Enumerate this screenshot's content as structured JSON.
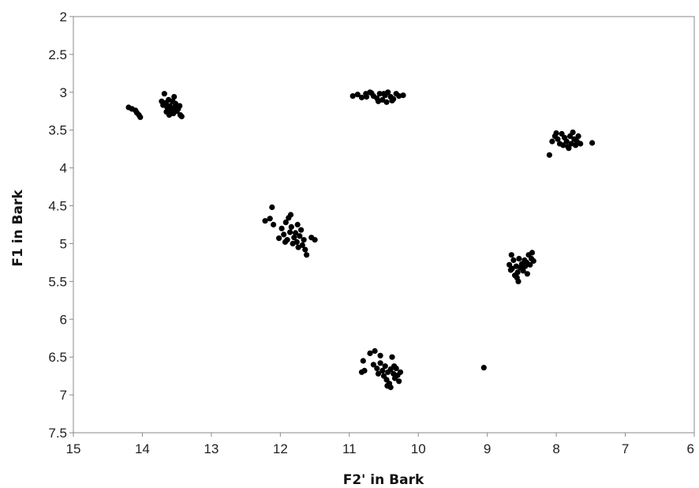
{
  "chart_data": {
    "type": "scatter",
    "title": "",
    "xlabel": "F2' in Bark",
    "ylabel": "F1 in Bark",
    "xlim": [
      15,
      6
    ],
    "ylim": [
      7.5,
      2
    ],
    "x_reversed": true,
    "y_reversed": true,
    "xticks": [
      "15",
      "14",
      "13",
      "12",
      "11",
      "10",
      "9",
      "8",
      "7",
      "6"
    ],
    "yticks": [
      "2",
      "2.5",
      "3",
      "3.5",
      "4",
      "4.5",
      "5",
      "5.5",
      "6",
      "6.5",
      "7",
      "7.5"
    ],
    "grid": false,
    "legend": "none",
    "point_color": "#000000",
    "series": [
      {
        "points": [
          [
            14.2,
            3.2
          ],
          [
            14.15,
            3.22
          ],
          [
            14.1,
            3.24
          ],
          [
            14.08,
            3.27
          ],
          [
            14.05,
            3.3
          ],
          [
            14.03,
            3.33
          ],
          [
            13.72,
            3.12
          ],
          [
            13.7,
            3.17
          ],
          [
            13.68,
            3.02
          ],
          [
            13.66,
            3.14
          ],
          [
            13.64,
            3.2
          ],
          [
            13.62,
            3.1
          ],
          [
            13.6,
            3.18
          ],
          [
            13.58,
            3.24
          ],
          [
            13.56,
            3.12
          ],
          [
            13.55,
            3.28
          ],
          [
            13.54,
            3.06
          ],
          [
            13.53,
            3.2
          ],
          [
            13.52,
            3.15
          ],
          [
            13.5,
            3.25
          ],
          [
            13.48,
            3.22
          ],
          [
            13.46,
            3.18
          ],
          [
            13.45,
            3.3
          ],
          [
            13.43,
            3.32
          ],
          [
            13.65,
            3.26
          ],
          [
            13.61,
            3.3
          ],
          [
            10.95,
            3.05
          ],
          [
            10.88,
            3.03
          ],
          [
            10.82,
            3.07
          ],
          [
            10.76,
            3.02
          ],
          [
            10.7,
            3.0
          ],
          [
            10.65,
            3.05
          ],
          [
            10.6,
            3.08
          ],
          [
            10.56,
            3.02
          ],
          [
            10.52,
            3.1
          ],
          [
            10.48,
            3.04
          ],
          [
            10.44,
            3.0
          ],
          [
            10.4,
            3.06
          ],
          [
            10.36,
            3.09
          ],
          [
            10.32,
            3.02
          ],
          [
            10.28,
            3.05
          ],
          [
            10.22,
            3.04
          ],
          [
            10.75,
            3.06
          ],
          [
            10.58,
            3.12
          ],
          [
            10.46,
            3.13
          ],
          [
            10.38,
            3.11
          ],
          [
            10.68,
            3.01
          ],
          [
            10.5,
            3.02
          ],
          [
            8.1,
            3.83
          ],
          [
            8.06,
            3.65
          ],
          [
            8.02,
            3.58
          ],
          [
            7.98,
            3.62
          ],
          [
            7.95,
            3.68
          ],
          [
            7.92,
            3.55
          ],
          [
            7.9,
            3.7
          ],
          [
            7.88,
            3.6
          ],
          [
            7.85,
            3.65
          ],
          [
            7.83,
            3.72
          ],
          [
            7.8,
            3.58
          ],
          [
            7.78,
            3.68
          ],
          [
            7.76,
            3.53
          ],
          [
            7.74,
            3.62
          ],
          [
            7.72,
            3.7
          ],
          [
            7.7,
            3.65
          ],
          [
            7.68,
            3.58
          ],
          [
            7.65,
            3.68
          ],
          [
            7.48,
            3.67
          ],
          [
            8.0,
            3.54
          ],
          [
            7.82,
            3.74
          ],
          [
            12.22,
            4.7
          ],
          [
            12.15,
            4.67
          ],
          [
            12.12,
            4.52
          ],
          [
            12.1,
            4.75
          ],
          [
            12.02,
            4.93
          ],
          [
            11.98,
            4.8
          ],
          [
            11.95,
            4.88
          ],
          [
            11.92,
            4.72
          ],
          [
            11.9,
            4.95
          ],
          [
            11.88,
            4.66
          ],
          [
            11.86,
            4.85
          ],
          [
            11.84,
            4.78
          ],
          [
            11.82,
            5.0
          ],
          [
            11.8,
            4.92
          ],
          [
            11.78,
            4.86
          ],
          [
            11.76,
            4.98
          ],
          [
            11.75,
            4.75
          ],
          [
            11.74,
            5.05
          ],
          [
            11.72,
            4.9
          ],
          [
            11.7,
            4.82
          ],
          [
            11.68,
            5.02
          ],
          [
            11.66,
            4.95
          ],
          [
            11.64,
            5.08
          ],
          [
            11.62,
            5.15
          ],
          [
            11.55,
            4.92
          ],
          [
            11.5,
            4.95
          ],
          [
            11.85,
            4.62
          ],
          [
            11.93,
            4.98
          ],
          [
            8.68,
            5.28
          ],
          [
            8.66,
            5.35
          ],
          [
            8.65,
            5.15
          ],
          [
            8.62,
            5.22
          ],
          [
            8.6,
            5.42
          ],
          [
            8.58,
            5.3
          ],
          [
            8.56,
            5.38
          ],
          [
            8.55,
            5.5
          ],
          [
            8.54,
            5.2
          ],
          [
            8.52,
            5.32
          ],
          [
            8.5,
            5.27
          ],
          [
            8.48,
            5.36
          ],
          [
            8.46,
            5.22
          ],
          [
            8.45,
            5.3
          ],
          [
            8.43,
            5.25
          ],
          [
            8.42,
            5.4
          ],
          [
            8.4,
            5.15
          ],
          [
            8.38,
            5.28
          ],
          [
            8.36,
            5.2
          ],
          [
            8.35,
            5.12
          ],
          [
            8.33,
            5.23
          ],
          [
            8.57,
            5.45
          ],
          [
            8.64,
            5.33
          ],
          [
            10.82,
            6.7
          ],
          [
            10.8,
            6.55
          ],
          [
            10.78,
            6.68
          ],
          [
            10.7,
            6.45
          ],
          [
            10.65,
            6.6
          ],
          [
            10.63,
            6.42
          ],
          [
            10.6,
            6.65
          ],
          [
            10.58,
            6.72
          ],
          [
            10.55,
            6.58
          ],
          [
            10.52,
            6.68
          ],
          [
            10.5,
            6.75
          ],
          [
            10.48,
            6.62
          ],
          [
            10.46,
            6.8
          ],
          [
            10.44,
            6.7
          ],
          [
            10.42,
            6.85
          ],
          [
            10.4,
            6.66
          ],
          [
            10.38,
            6.5
          ],
          [
            10.36,
            6.72
          ],
          [
            10.34,
            6.78
          ],
          [
            10.32,
            6.65
          ],
          [
            10.3,
            6.74
          ],
          [
            10.28,
            6.82
          ],
          [
            10.26,
            6.7
          ],
          [
            10.4,
            6.9
          ],
          [
            10.45,
            6.88
          ],
          [
            10.55,
            6.48
          ],
          [
            10.35,
            6.62
          ],
          [
            9.05,
            6.64
          ]
        ]
      }
    ]
  }
}
